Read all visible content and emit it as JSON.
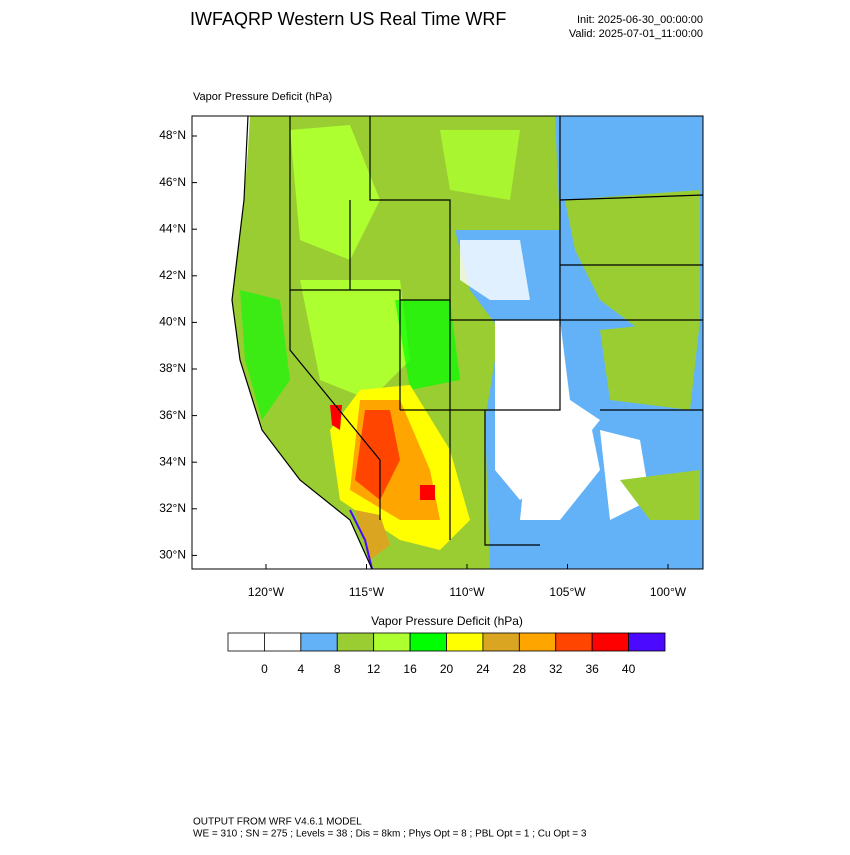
{
  "header": {
    "title": "IWFAQRP Western US Real Time WRF",
    "init": "Init: 2025-06-30_00:00:00",
    "valid": "Valid: 2025-07-01_11:00:00"
  },
  "map": {
    "title": "Vapor Pressure Deficit   (hPa)",
    "lat_labels": [
      "48°N",
      "46°N",
      "44°N",
      "42°N",
      "40°N",
      "38°N",
      "36°N",
      "34°N",
      "32°N",
      "30°N"
    ],
    "lon_labels": [
      "120°W",
      "115°W",
      "110°W",
      "105°W",
      "100°W"
    ]
  },
  "colorbar": {
    "title": "Vapor Pressure Deficit  (hPa)",
    "colors": [
      "#ffffff",
      "#ffffff",
      "#63b2f7",
      "#9acd32",
      "#adff2f",
      "#00ff00",
      "#ffff00",
      "#daa520",
      "#ffa500",
      "#ff4500",
      "#ff0000",
      "#4b0aff"
    ],
    "labels": [
      0,
      4,
      8,
      12,
      16,
      20,
      24,
      28,
      32,
      36,
      40
    ]
  },
  "footer": {
    "line1": "OUTPUT FROM WRF V4.6.1 MODEL",
    "line2": "WE = 310 ; SN = 275 ; Levels = 38 ; Dis = 8km ; Phys Opt = 8 ; PBL Opt = 1 ; Cu Opt = 3"
  }
}
